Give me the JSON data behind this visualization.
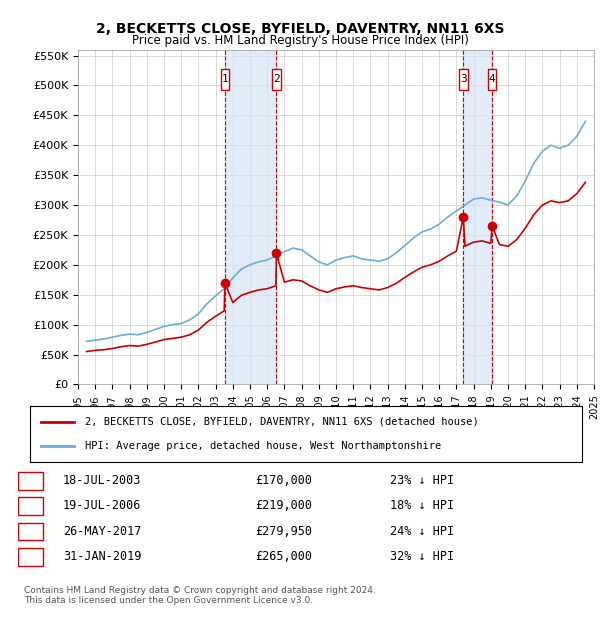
{
  "title": "2, BECKETTS CLOSE, BYFIELD, DAVENTRY, NN11 6XS",
  "subtitle": "Price paid vs. HM Land Registry's House Price Index (HPI)",
  "ylabel_ticks": [
    "£0",
    "£50K",
    "£100K",
    "£150K",
    "£200K",
    "£250K",
    "£300K",
    "£350K",
    "£400K",
    "£450K",
    "£500K",
    "£550K"
  ],
  "ytick_values": [
    0,
    50000,
    100000,
    150000,
    200000,
    250000,
    300000,
    350000,
    400000,
    450000,
    500000,
    550000
  ],
  "xmin": 1995,
  "xmax": 2025,
  "ymin": 0,
  "ymax": 560000,
  "transactions": [
    {
      "id": 1,
      "date": "18-JUL-2003",
      "year": 2003.54,
      "price": 170000,
      "pct": "23%",
      "dir": "↓"
    },
    {
      "id": 2,
      "date": "19-JUL-2006",
      "year": 2006.54,
      "price": 219000,
      "pct": "18%",
      "dir": "↓"
    },
    {
      "id": 3,
      "date": "26-MAY-2017",
      "year": 2017.4,
      "price": 279950,
      "pct": "24%",
      "dir": "↓"
    },
    {
      "id": 4,
      "date": "31-JAN-2019",
      "year": 2019.08,
      "price": 265000,
      "pct": "32%",
      "dir": "↓"
    }
  ],
  "hpi_color": "#6baed6",
  "price_color": "#cc0000",
  "shading_color": "#d6e4f7",
  "grid_color": "#cccccc",
  "legend_label_price": "2, BECKETTS CLOSE, BYFIELD, DAVENTRY, NN11 6XS (detached house)",
  "legend_label_hpi": "HPI: Average price, detached house, West Northamptonshire",
  "footer": "Contains HM Land Registry data © Crown copyright and database right 2024.\nThis data is licensed under the Open Government Licence v3.0.",
  "hpi_data": {
    "years": [
      1995.5,
      1996.0,
      1996.5,
      1997.0,
      1997.5,
      1998.0,
      1998.5,
      1999.0,
      1999.5,
      2000.0,
      2000.5,
      2001.0,
      2001.5,
      2002.0,
      2002.5,
      2003.0,
      2003.5,
      2004.0,
      2004.5,
      2005.0,
      2005.5,
      2006.0,
      2006.5,
      2007.0,
      2007.5,
      2008.0,
      2008.5,
      2009.0,
      2009.5,
      2010.0,
      2010.5,
      2011.0,
      2011.5,
      2012.0,
      2012.5,
      2013.0,
      2013.5,
      2014.0,
      2014.5,
      2015.0,
      2015.5,
      2016.0,
      2016.5,
      2017.0,
      2017.5,
      2018.0,
      2018.5,
      2019.0,
      2019.5,
      2020.0,
      2020.5,
      2021.0,
      2021.5,
      2022.0,
      2022.5,
      2023.0,
      2023.5,
      2024.0,
      2024.5
    ],
    "values": [
      72000,
      74000,
      76000,
      79000,
      82000,
      84000,
      83000,
      87000,
      92000,
      97000,
      100000,
      102000,
      108000,
      118000,
      135000,
      148000,
      160000,
      178000,
      193000,
      200000,
      205000,
      208000,
      215000,
      222000,
      228000,
      225000,
      215000,
      205000,
      200000,
      208000,
      212000,
      215000,
      210000,
      208000,
      206000,
      210000,
      220000,
      232000,
      245000,
      255000,
      260000,
      268000,
      280000,
      290000,
      300000,
      310000,
      312000,
      308000,
      305000,
      300000,
      315000,
      340000,
      370000,
      390000,
      400000,
      395000,
      400000,
      415000,
      440000
    ]
  },
  "price_series": {
    "years": [
      1995.5,
      1996.0,
      1996.5,
      1997.0,
      1997.5,
      1998.0,
      1998.5,
      1999.0,
      1999.5,
      2000.0,
      2000.5,
      2001.0,
      2001.5,
      2002.0,
      2002.5,
      2003.0,
      2003.5,
      2003.54,
      2004.0,
      2004.5,
      2005.0,
      2005.5,
      2006.0,
      2006.5,
      2006.54,
      2007.0,
      2007.5,
      2008.0,
      2008.5,
      2009.0,
      2009.5,
      2010.0,
      2010.5,
      2011.0,
      2011.5,
      2012.0,
      2012.5,
      2013.0,
      2013.5,
      2014.0,
      2014.5,
      2015.0,
      2015.5,
      2016.0,
      2016.5,
      2017.0,
      2017.4,
      2017.5,
      2018.0,
      2018.5,
      2019.0,
      2019.08,
      2019.5,
      2020.0,
      2020.5,
      2021.0,
      2021.5,
      2022.0,
      2022.5,
      2023.0,
      2023.5,
      2024.0,
      2024.5
    ],
    "values": [
      55000,
      57000,
      58000,
      60000,
      63000,
      65000,
      64000,
      67000,
      71000,
      75000,
      77000,
      79000,
      83000,
      91000,
      104000,
      114000,
      123000,
      170000,
      137000,
      149000,
      154000,
      158000,
      160000,
      165000,
      219000,
      171000,
      175000,
      173000,
      165000,
      158000,
      154000,
      160000,
      163000,
      165000,
      162000,
      160000,
      158000,
      162000,
      169000,
      179000,
      188000,
      196000,
      200000,
      206000,
      215000,
      223000,
      279950,
      231000,
      238000,
      240000,
      236000,
      265000,
      234000,
      231000,
      242000,
      261000,
      284000,
      300000,
      307000,
      304000,
      307000,
      319000,
      338000
    ]
  }
}
